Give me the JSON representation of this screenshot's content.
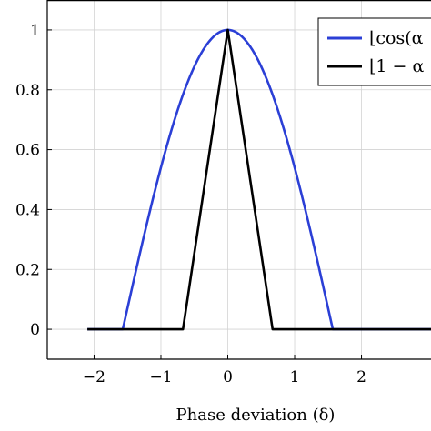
{
  "chart_data": {
    "type": "line",
    "title": "",
    "xlabel": "Phase deviation (δ)",
    "ylabel": "",
    "xlim": [
      -2.7,
      3.04
    ],
    "ylim": [
      -0.1,
      1.1
    ],
    "grid": true,
    "x_ticks": [
      {
        "value": -2,
        "label": "−2"
      },
      {
        "value": -1,
        "label": "−1"
      },
      {
        "value": 0,
        "label": "0"
      },
      {
        "value": 1,
        "label": "1"
      },
      {
        "value": 2,
        "label": "2"
      }
    ],
    "y_ticks": [
      {
        "value": 0,
        "label": "0"
      },
      {
        "value": 0.2,
        "label": "0.2"
      },
      {
        "value": 0.4,
        "label": "0.4"
      },
      {
        "value": 0.6,
        "label": "0.6"
      },
      {
        "value": 0.8,
        "label": "0.8"
      },
      {
        "value": 1,
        "label": "1"
      }
    ],
    "legend_position": "top-right",
    "series": [
      {
        "name": "⌊cos(α",
        "color": "#2b3fd6",
        "function": "cos-clipped",
        "x_range": [
          -2.1,
          3.04
        ]
      },
      {
        "name": "⌊1 − α",
        "color": "#000000",
        "function": "triangle",
        "half_width": 0.67,
        "x_range": [
          -2.1,
          3.04
        ]
      }
    ]
  }
}
